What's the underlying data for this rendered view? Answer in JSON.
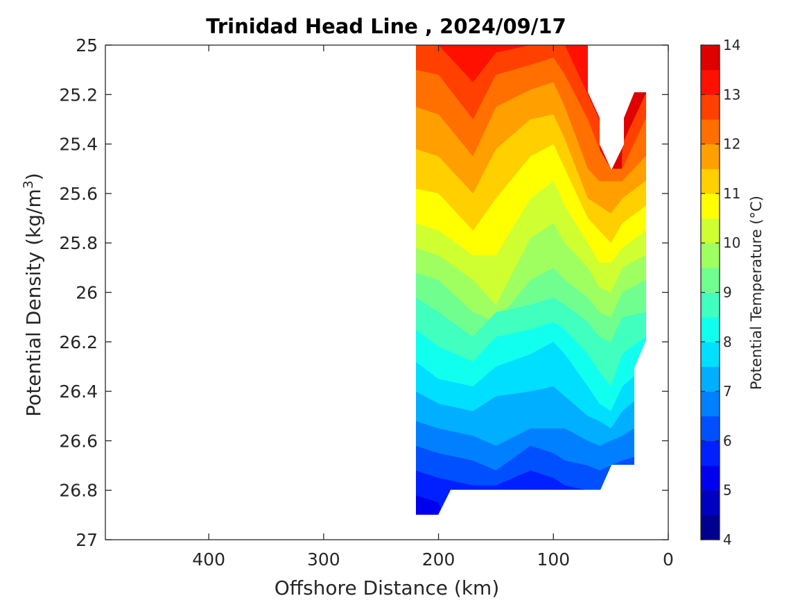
{
  "chart_data": {
    "type": "filled-contour",
    "title": "Trinidad Head Line , 2024/09/17",
    "xlabel": "Offshore Distance (km)",
    "ylabel": "Potential Density (kg/m",
    "ylabel_sup": "3",
    "ylabel_close": ")",
    "xlim": [
      490,
      0
    ],
    "xdir": "reverse",
    "ylim": [
      25,
      27
    ],
    "ydir": "reverse",
    "xticks": [
      400,
      300,
      200,
      100,
      0
    ],
    "yticks": [
      25,
      25.2,
      25.4,
      25.6,
      25.8,
      26,
      26.2,
      26.4,
      26.6,
      26.8,
      27
    ],
    "colorbar": {
      "label": "Potential Temperature (°C)",
      "min": 4,
      "max": 14,
      "step": 0.5,
      "ticks": [
        4,
        5,
        6,
        7,
        8,
        9,
        10,
        11,
        12,
        13,
        14
      ],
      "colors": [
        "#00008f",
        "#0000bf",
        "#0000ef",
        "#0020ff",
        "#0050ff",
        "#0080ff",
        "#00afff",
        "#00dfff",
        "#10ffef",
        "#40ffbf",
        "#70ff8f",
        "#9fff60",
        "#cfff30",
        "#ffff00",
        "#ffcf00",
        "#ff9f00",
        "#ff7000",
        "#ff4000",
        "#ff1000",
        "#df0000"
      ]
    },
    "x": [
      220,
      200,
      170,
      150,
      120,
      100,
      90,
      70,
      60,
      50,
      40,
      20
    ],
    "isotherms": [
      {
        "level": 13.5,
        "y": [
          25.05,
          25.0,
          25.0,
          25.0,
          25.0,
          25.0,
          25.0,
          25.0,
          null,
          null,
          null,
          null
        ]
      },
      {
        "level": 13,
        "y": [
          25.0,
          25.0,
          25.15,
          25.03,
          25.0,
          25.0,
          25.0,
          25.2,
          25.3,
          null,
          25.4,
          25.2
        ]
      },
      {
        "level": 12.5,
        "y": [
          25.1,
          25.12,
          25.3,
          25.12,
          25.08,
          25.05,
          25.12,
          25.3,
          25.42,
          25.5,
          25.5,
          25.3
        ]
      },
      {
        "level": 12,
        "y": [
          25.25,
          25.28,
          25.45,
          25.25,
          25.18,
          25.15,
          25.25,
          25.5,
          25.55,
          25.55,
          25.55,
          25.45
        ]
      },
      {
        "level": 11.5,
        "y": [
          25.42,
          25.45,
          25.6,
          25.42,
          25.3,
          25.28,
          25.38,
          25.62,
          25.65,
          25.68,
          25.62,
          25.55
        ]
      },
      {
        "level": 11,
        "y": [
          25.58,
          25.6,
          25.75,
          25.62,
          25.45,
          25.4,
          25.5,
          25.7,
          25.75,
          25.8,
          25.72,
          25.65
        ]
      },
      {
        "level": 10.5,
        "y": [
          25.72,
          25.75,
          25.85,
          25.85,
          25.62,
          25.55,
          25.65,
          25.8,
          25.88,
          25.88,
          25.82,
          25.75
        ]
      },
      {
        "level": 10,
        "y": [
          25.82,
          25.85,
          25.95,
          26.05,
          25.78,
          25.72,
          25.8,
          25.9,
          25.98,
          26.0,
          25.9,
          25.85
        ]
      },
      {
        "level": 9.5,
        "y": [
          25.92,
          25.95,
          26.08,
          26.12,
          25.95,
          25.9,
          25.95,
          26.02,
          26.08,
          26.1,
          26.0,
          25.95
        ]
      },
      {
        "level": 9,
        "y": [
          26.02,
          26.08,
          26.18,
          26.08,
          26.05,
          26.02,
          26.05,
          26.12,
          26.18,
          26.2,
          26.1,
          26.08
        ]
      },
      {
        "level": 8.5,
        "y": [
          26.15,
          26.22,
          26.28,
          26.18,
          26.15,
          26.12,
          26.15,
          26.25,
          26.32,
          26.38,
          26.25,
          26.18
        ]
      },
      {
        "level": 8,
        "y": [
          26.28,
          26.35,
          26.38,
          26.3,
          26.25,
          26.2,
          26.25,
          26.38,
          26.45,
          26.48,
          26.38,
          26.3
        ]
      },
      {
        "level": 7.5,
        "y": [
          26.4,
          26.45,
          26.48,
          26.42,
          26.4,
          26.38,
          26.42,
          26.5,
          26.52,
          26.55,
          26.48,
          26.4
        ]
      },
      {
        "level": 7,
        "y": [
          26.52,
          26.55,
          26.58,
          26.62,
          26.55,
          26.55,
          26.55,
          26.6,
          26.62,
          26.6,
          26.58,
          26.52
        ]
      },
      {
        "level": 6.5,
        "y": [
          26.62,
          26.65,
          26.68,
          26.72,
          26.62,
          26.65,
          26.68,
          26.7,
          26.72,
          26.7,
          26.68,
          26.65
        ]
      },
      {
        "level": 6,
        "y": [
          26.72,
          26.75,
          26.78,
          26.78,
          26.72,
          26.75,
          26.78,
          26.8,
          26.8,
          null,
          null,
          null
        ]
      },
      {
        "level": 5.5,
        "y": [
          26.82,
          26.85,
          null,
          null,
          26.82,
          26.88,
          26.85,
          null,
          null,
          null,
          null,
          null
        ]
      },
      {
        "level": 5,
        "y": [
          26.9,
          26.9,
          null,
          null,
          null,
          26.9,
          26.9,
          null,
          null,
          null,
          null,
          null
        ]
      }
    ]
  }
}
